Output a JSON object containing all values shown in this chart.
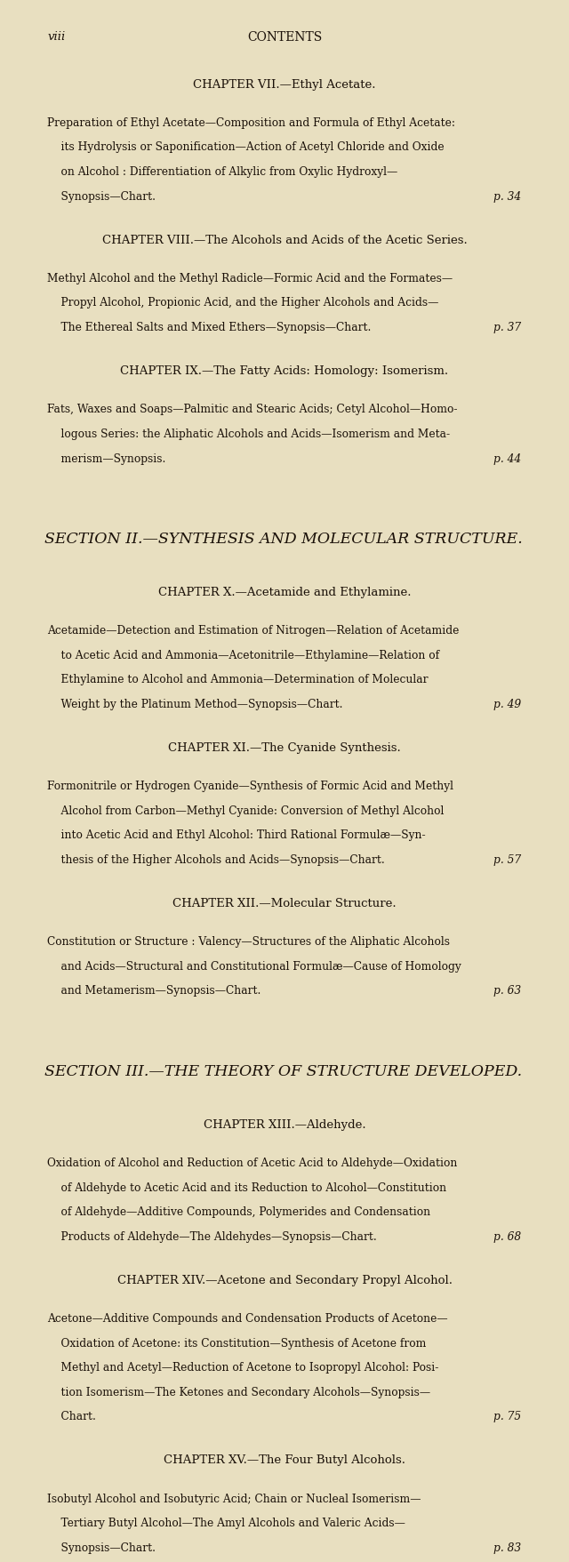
{
  "bg_color": "#e8dfc0",
  "text_color": "#1a1008",
  "page_width": 8.0,
  "page_height": 12.77,
  "header_page_num": "viii",
  "header_title": "CONTENTS",
  "entries": [
    {
      "type": "chapter_heading",
      "text": "CHAPTER VII.—Ethyl Acetate.",
      "bold_part": "Ethyl Acetate.",
      "regular_part": "CHAPTER VII.—"
    },
    {
      "type": "body",
      "lines": [
        "Preparation of Ethyl Acetate—Composition and Formula of Ethyl Acetate:",
        "    its Hydrolysis or Saponification—Action of Acetyl Chloride and Oxide",
        "    on Alcohol : Differentiation of Alkylic from Oxylic Hydroxyl—",
        "    Synopsis—Chart."
      ],
      "page_ref": "p. 34"
    },
    {
      "type": "chapter_heading",
      "text": "CHAPTER VIII.—The Alcohols and Acids of the Acetic Series.",
      "bold_part": "The Alcohols and Acids of the Acetic Series.",
      "regular_part": "CHAPTER VIII.—"
    },
    {
      "type": "body",
      "lines": [
        "Methyl Alcohol and the Methyl Radicle—Formic Acid and the Formates—",
        "    Propyl Alcohol, Propionic Acid, and the Higher Alcohols and Acids—",
        "    The Ethereal Salts and Mixed Ethers—Synopsis—Chart."
      ],
      "page_ref": "p. 37"
    },
    {
      "type": "chapter_heading",
      "text": "CHAPTER IX.—The Fatty Acids: Homology: Isomerism.",
      "bold_part": "The Fatty Acids: Homology: Isomerism.",
      "regular_part": "CHAPTER IX.—"
    },
    {
      "type": "body",
      "lines": [
        "Fats, Waxes and Soaps—Palmitic and Stearic Acids; Cetyl Alcohol—Homo-",
        "    logous Series: the Aliphatic Alcohols and Acids—Isomerism and Meta-",
        "    merism—Synopsis."
      ],
      "page_ref": "p. 44"
    },
    {
      "type": "section_heading",
      "text": "SECTION II.—SYNTHESIS AND MOLECULAR STRUCTURE."
    },
    {
      "type": "chapter_heading",
      "text": "CHAPTER X.—Acetamide and Ethylamine.",
      "bold_part": "Acetamide and Ethylamine.",
      "regular_part": "CHAPTER X.—"
    },
    {
      "type": "body",
      "lines": [
        "Acetamide—Detection and Estimation of Nitrogen—Relation of Acetamide",
        "    to Acetic Acid and Ammonia—Acetonitrile—Ethylamine—Relation of",
        "    Ethylamine to Alcohol and Ammonia—Determination of Molecular",
        "    Weight by the Platinum Method—Synopsis—Chart."
      ],
      "page_ref": "p. 49"
    },
    {
      "type": "chapter_heading",
      "text": "CHAPTER XI.—The Cyanide Synthesis.",
      "bold_part": "The Cyanide Synthesis.",
      "regular_part": "CHAPTER XI.—"
    },
    {
      "type": "body",
      "lines": [
        "Formonitrile or Hydrogen Cyanide—Synthesis of Formic Acid and Methyl",
        "    Alcohol from Carbon—Methyl Cyanide: Conversion of Methyl Alcohol",
        "    into Acetic Acid and Ethyl Alcohol: Third Rational Formulæ—Syn-",
        "    thesis of the Higher Alcohols and Acids—Synopsis—Chart."
      ],
      "page_ref": "p. 57"
    },
    {
      "type": "chapter_heading",
      "text": "CHAPTER XII.—Molecular Structure.",
      "bold_part": "Molecular Structure.",
      "regular_part": "CHAPTER XII.—"
    },
    {
      "type": "body",
      "lines": [
        "Constitution or Structure : Valency—Structures of the Aliphatic Alcohols",
        "    and Acids—Structural and Constitutional Formulæ—Cause of Homology",
        "    and Metamerism—Synopsis—Chart."
      ],
      "page_ref": "p. 63"
    },
    {
      "type": "section_heading",
      "text": "SECTION III.—THE THEORY OF STRUCTURE DEVELOPED."
    },
    {
      "type": "chapter_heading",
      "text": "CHAPTER XIII.—Aldehyde.",
      "bold_part": "Aldehyde.",
      "regular_part": "CHAPTER XIII.—"
    },
    {
      "type": "body",
      "lines": [
        "Oxidation of Alcohol and Reduction of Acetic Acid to Aldehyde—Oxidation",
        "    of Aldehyde to Acetic Acid and its Reduction to Alcohol—Constitution",
        "    of Aldehyde—Additive Compounds, Polymerides and Condensation",
        "    Products of Aldehyde—The Aldehydes—Synopsis—Chart."
      ],
      "page_ref": "p. 68"
    },
    {
      "type": "chapter_heading",
      "text": "CHAPTER XIV.—Acetone and Secondary Propyl Alcohol.",
      "bold_part": "Acetone and Secondary Propyl Alcohol.",
      "regular_part": "CHAPTER XIV.—"
    },
    {
      "type": "body",
      "lines": [
        "Acetone—Additive Compounds and Condensation Products of Acetone—",
        "    Oxidation of Acetone: its Constitution—Synthesis of Acetone from",
        "    Methyl and Acetyl—Reduction of Acetone to Isopropyl Alcohol: Posi-",
        "    tion Isomerism—The Ketones and Secondary Alcohols—Synopsis—",
        "    Chart."
      ],
      "page_ref": "p. 75"
    },
    {
      "type": "chapter_heading",
      "text": "CHAPTER XV.—The Four Butyl Alcohols.",
      "bold_part": "The Four Butyl Alcohols.",
      "regular_part": "CHAPTER XV.—"
    },
    {
      "type": "body",
      "lines": [
        "Isobutyl Alcohol and Isobutyric Acid; Chain or Nucleal Isomerism—",
        "    Tertiary Butyl Alcohol—The Amyl Alcohols and Valeric Acids—",
        "    Synopsis—Chart."
      ],
      "page_ref": "p. 83"
    }
  ]
}
